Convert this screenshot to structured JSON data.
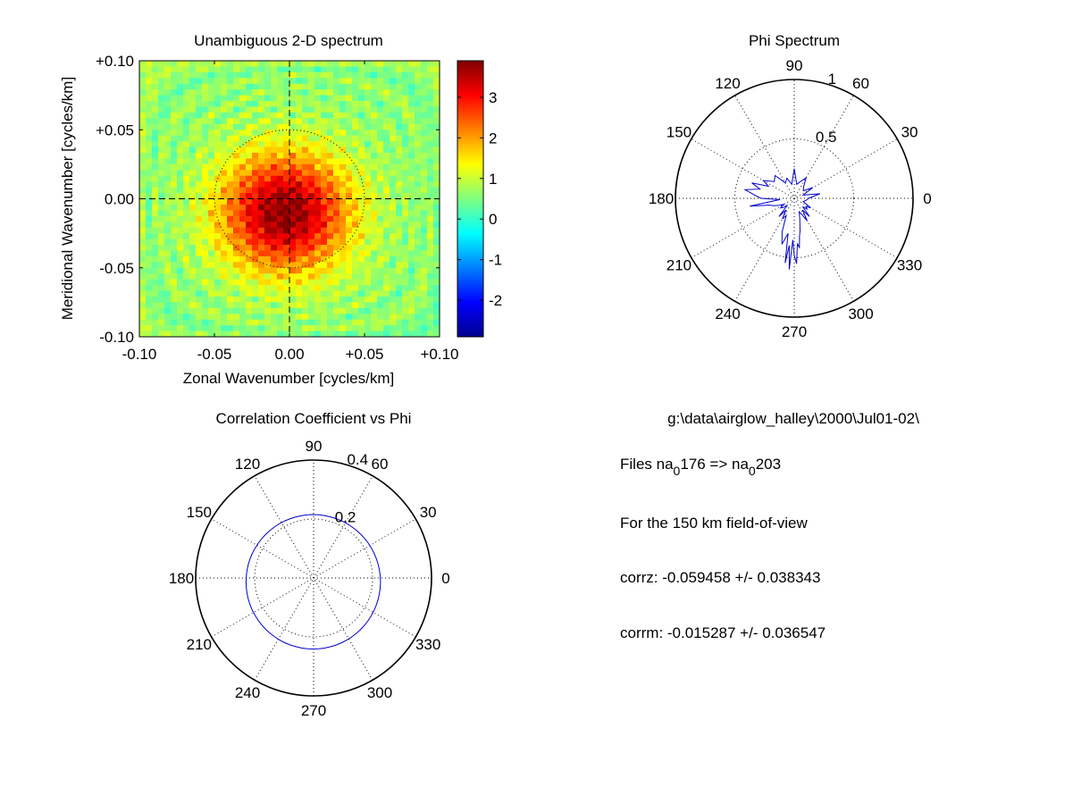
{
  "chart_data": [
    {
      "type": "heatmap",
      "title": "Unambiguous 2-D spectrum",
      "xlabel": "Zonal Wavenumber [cycles/km]",
      "ylabel": "Meridional Wavenumber [cycles/km]",
      "xlim": [
        -0.1,
        0.1
      ],
      "ylim": [
        -0.1,
        0.1
      ],
      "x_ticks": [
        "-0.10",
        "-0.05",
        "0.00",
        "+0.05",
        "+0.10"
      ],
      "y_ticks": [
        "+0.10",
        "+0.05",
        "0.00",
        "-0.05",
        "-0.10"
      ],
      "colorbar": {
        "range": [
          -2.9,
          3.9
        ],
        "ticks": [
          3,
          2,
          1,
          0,
          -1,
          -2
        ],
        "tick_labels": [
          "3",
          "2",
          "1",
          "0",
          "-1",
          "-2"
        ],
        "colormap": "jet"
      },
      "features": {
        "peak": {
          "x": -0.003,
          "y": -0.01,
          "value": 3.9
        },
        "background_value": 0.6,
        "dashed_crosshair_at": [
          0.0,
          0.0
        ],
        "dotted_circle_radius": 0.05
      }
    },
    {
      "type": "polar",
      "title": "Phi Spectrum",
      "angle_labels": [
        "0",
        "30",
        "60",
        "90",
        "120",
        "150",
        "180",
        "210",
        "240",
        "270",
        "300",
        "330"
      ],
      "radial_max": 1,
      "radial_ticks": [
        0.5,
        1
      ],
      "radial_tick_labels": [
        "0.5",
        "1"
      ],
      "series": [
        {
          "color": "#0000cc",
          "theta_deg": [
            0,
            10,
            20,
            30,
            40,
            50,
            60,
            70,
            80,
            90,
            100,
            110,
            120,
            130,
            140,
            150,
            155,
            160,
            165,
            170,
            175,
            180,
            185,
            190,
            195,
            200,
            205,
            210,
            215,
            220,
            225,
            230,
            235,
            240,
            245,
            250,
            255,
            260,
            262,
            264,
            266,
            268,
            270,
            272,
            274,
            276,
            278,
            280,
            285,
            290,
            295,
            300,
            305,
            310,
            315,
            320,
            325,
            330,
            340,
            350
          ],
          "r": [
            0.12,
            0.22,
            0.08,
            0.18,
            0.1,
            0.12,
            0.2,
            0.15,
            0.12,
            0.25,
            0.12,
            0.18,
            0.15,
            0.25,
            0.22,
            0.3,
            0.24,
            0.38,
            0.3,
            0.42,
            0.34,
            0.28,
            0.12,
            0.38,
            0.22,
            0.18,
            0.14,
            0.1,
            0.14,
            0.12,
            0.08,
            0.2,
            0.12,
            0.2,
            0.16,
            0.3,
            0.4,
            0.3,
            0.55,
            0.4,
            0.6,
            0.35,
            0.48,
            0.55,
            0.38,
            0.42,
            0.32,
            0.28,
            0.18,
            0.12,
            0.15,
            0.22,
            0.12,
            0.2,
            0.1,
            0.14,
            0.12,
            0.16,
            0.08,
            0.1
          ]
        }
      ]
    },
    {
      "type": "polar",
      "title": "Correlation Coefficient vs Phi",
      "angle_labels": [
        "0",
        "30",
        "60",
        "90",
        "120",
        "150",
        "180",
        "210",
        "240",
        "270",
        "300",
        "330"
      ],
      "radial_max": 0.4,
      "radial_ticks": [
        0.2,
        0.4
      ],
      "radial_tick_labels": [
        "0.2",
        "0.4"
      ],
      "series": [
        {
          "color": "#0000cc",
          "shape": "circle",
          "center_r": 0.013,
          "center_angle_deg": 265,
          "radius": 0.228
        }
      ]
    }
  ],
  "info": {
    "path": "g:\\data\\airglow_halley\\2000\\Jul01-02\\",
    "files_prefix": "Files  na",
    "files_sub1": "0",
    "files_mid": "176  =>  na",
    "files_sub2": "0",
    "files_end": "203",
    "fov": "For the  150 km field-of-view",
    "corrz": "corrz: -0.059458 +/- 0.038343",
    "corrm": "corrm: -0.015287 +/- 0.036547"
  }
}
